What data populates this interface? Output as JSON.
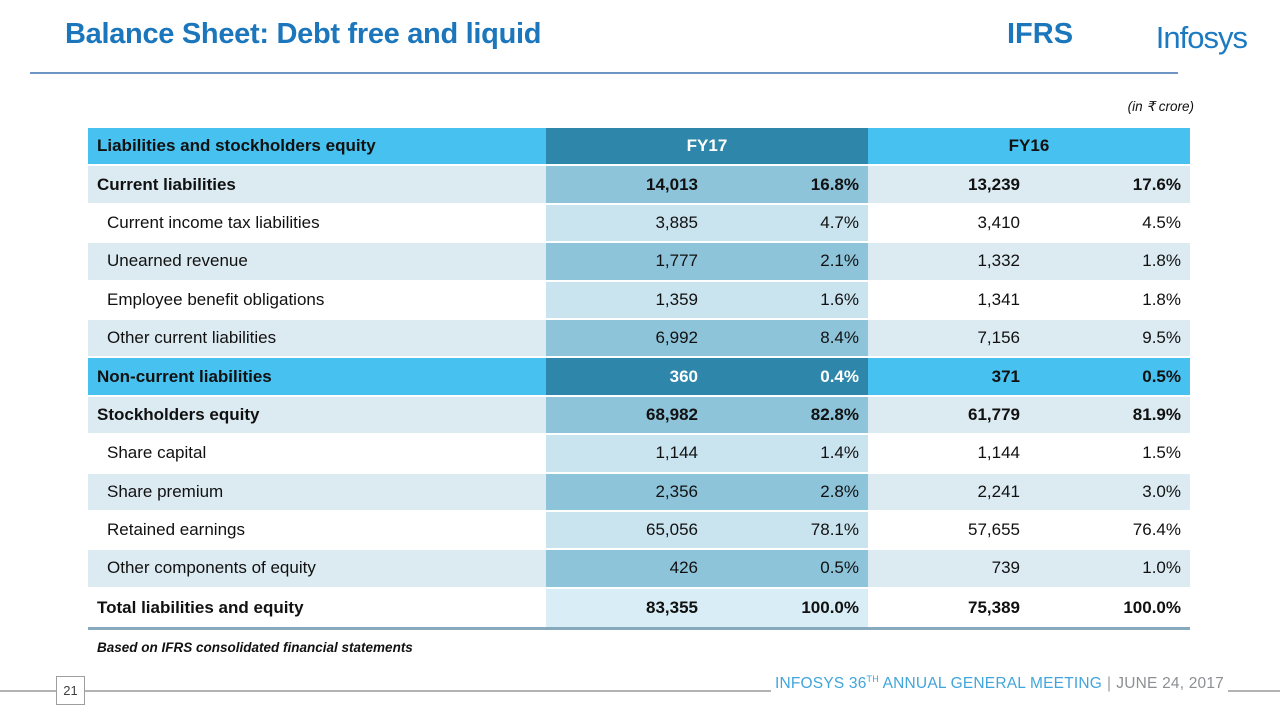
{
  "slide": {
    "title": "Balance Sheet: Debt free and liquid",
    "standard": "IFRS",
    "brand": "Infosys",
    "unit_note": "(in ₹ crore)",
    "footnote": "Based on IFRS consolidated financial statements",
    "page_number": "21",
    "footer": {
      "event_prefix": "INFOSYS 36",
      "event_sup": "TH",
      "event_suffix": " ANNUAL GENERAL MEETING",
      "separator": "|",
      "date": "JUNE 24, 2017"
    },
    "colors": {
      "title_blue": "#1B76BC",
      "header_bright_blue": "#47C2F0",
      "fy17_header_teal": "#2E87AA",
      "pale_row_blue": "#DCEAF2",
      "fy17_mid_blue": "#8EC4DA",
      "fy17_light_blue": "#C9E3EF",
      "footer_blue": "#41A5DC",
      "footer_gray": "#8C8F93"
    }
  },
  "table": {
    "header": {
      "label": "Liabilities and stockholders equity",
      "fy17": "FY17",
      "fy16": "FY16"
    },
    "rows": [
      {
        "label": "Current liabilities",
        "fy17_value": "14,013",
        "fy17_pct": "16.8%",
        "fy16_value": "13,239",
        "fy16_pct": "17.6%",
        "style": "section"
      },
      {
        "label": "Current income tax liabilities",
        "fy17_value": "3,885",
        "fy17_pct": "4.7%",
        "fy16_value": "3,410",
        "fy16_pct": "4.5%",
        "style": "sub_white"
      },
      {
        "label": "Unearned revenue",
        "fy17_value": "1,777",
        "fy17_pct": "2.1%",
        "fy16_value": "1,332",
        "fy16_pct": "1.8%",
        "style": "sub_pale"
      },
      {
        "label": "Employee benefit obligations",
        "fy17_value": "1,359",
        "fy17_pct": "1.6%",
        "fy16_value": "1,341",
        "fy16_pct": "1.8%",
        "style": "sub_white"
      },
      {
        "label": "Other current liabilities",
        "fy17_value": "6,992",
        "fy17_pct": "8.4%",
        "fy16_value": "7,156",
        "fy16_pct": "9.5%",
        "style": "sub_pale"
      },
      {
        "label": "Non-current liabilities",
        "fy17_value": "360",
        "fy17_pct": "0.4%",
        "fy16_value": "371",
        "fy16_pct": "0.5%",
        "style": "highlight"
      },
      {
        "label": "Stockholders equity",
        "fy17_value": "68,982",
        "fy17_pct": "82.8%",
        "fy16_value": "61,779",
        "fy16_pct": "81.9%",
        "style": "section"
      },
      {
        "label": "Share capital",
        "fy17_value": "1,144",
        "fy17_pct": "1.4%",
        "fy16_value": "1,144",
        "fy16_pct": "1.5%",
        "style": "sub_white"
      },
      {
        "label": "Share premium",
        "fy17_value": "2,356",
        "fy17_pct": "2.8%",
        "fy16_value": "2,241",
        "fy16_pct": "3.0%",
        "style": "sub_pale"
      },
      {
        "label": "Retained earnings",
        "fy17_value": "65,056",
        "fy17_pct": "78.1%",
        "fy16_value": "57,655",
        "fy16_pct": "76.4%",
        "style": "sub_white"
      },
      {
        "label": "Other components of equity",
        "fy17_value": "426",
        "fy17_pct": "0.5%",
        "fy16_value": "739",
        "fy16_pct": "1.0%",
        "style": "sub_pale"
      },
      {
        "label": "Total liabilities and equity",
        "fy17_value": "83,355",
        "fy17_pct": "100.0%",
        "fy16_value": "75,389",
        "fy16_pct": "100.0%",
        "style": "total"
      }
    ]
  }
}
